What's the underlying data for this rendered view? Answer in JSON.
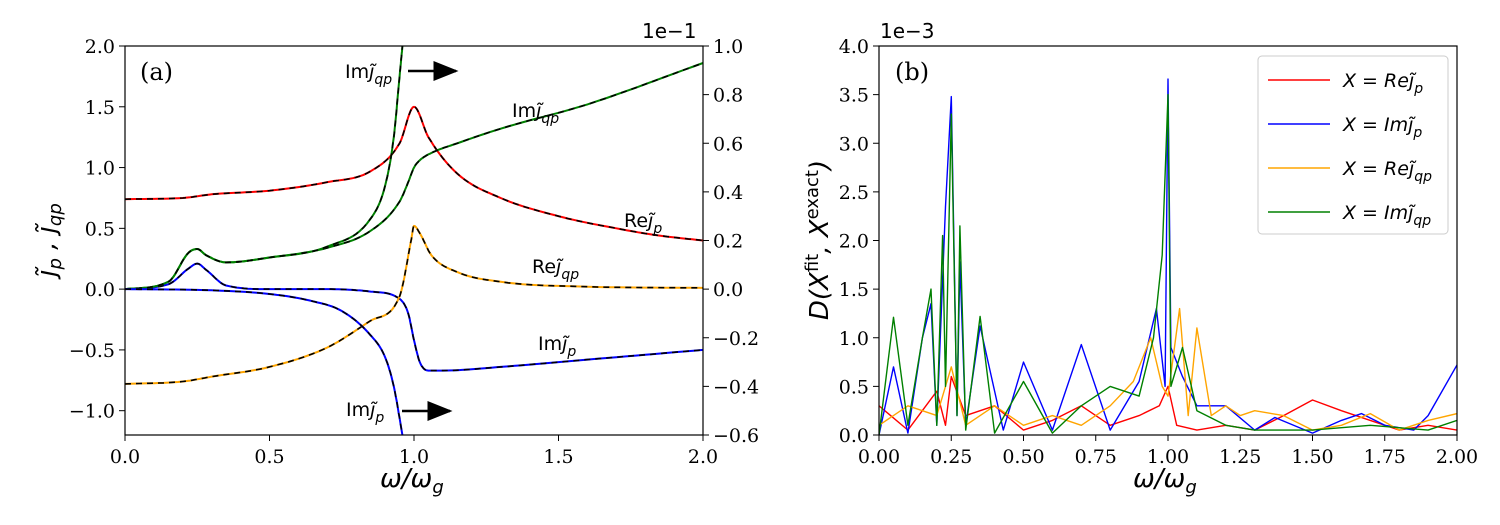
{
  "chart_data": [
    {
      "panel": "(a)",
      "type": "line",
      "xlabel": "ω/ω_g",
      "ylabel": "j̃_p , j̃_qp",
      "xlim": [
        0.0,
        2.0
      ],
      "ylim_left": [
        -1.2,
        2.0
      ],
      "ylim_right": [
        -0.6,
        1.0
      ],
      "right_axis_offset_text": "1e−1",
      "x_ticks": [
        "0.0",
        "0.5",
        "1.0",
        "1.5",
        "2.0"
      ],
      "y_ticks_left": [
        "−1.0",
        "−0.5",
        "0.0",
        "0.5",
        "1.0",
        "1.5",
        "2.0"
      ],
      "y_ticks_right": [
        "−0.6",
        "−0.4",
        "−0.2",
        "0.0",
        "0.2",
        "0.4",
        "0.6",
        "0.8",
        "1.0"
      ],
      "series": [
        {
          "name": "Re j̃_p",
          "color": "#ff0000",
          "axis": "left",
          "x": [
            0,
            0.2,
            0.3,
            0.5,
            0.7,
            0.85,
            0.95,
            1.0,
            1.05,
            1.15,
            1.3,
            1.5,
            1.7,
            1.85,
            2.0
          ],
          "y": [
            0.74,
            0.75,
            0.78,
            0.81,
            0.88,
            0.97,
            1.2,
            1.5,
            1.25,
            0.95,
            0.75,
            0.6,
            0.5,
            0.44,
            0.4
          ]
        },
        {
          "name": "Im j̃_p",
          "color": "#0000ff",
          "axis": "left",
          "x": [
            0,
            0.15,
            0.22,
            0.25,
            0.28,
            0.35,
            0.5,
            0.7,
            0.85,
            0.95,
            0.98,
            1.0,
            1.02,
            1.05,
            1.1,
            1.3,
            1.6,
            2.0
          ],
          "y": [
            0,
            0.04,
            0.17,
            0.21,
            0.16,
            0.03,
            0,
            0,
            -0.02,
            -0.08,
            -0.2,
            -0.42,
            -0.6,
            -0.67,
            -0.67,
            -0.64,
            -0.58,
            -0.5
          ]
        },
        {
          "name": "Re j̃_qp",
          "color": "#ffa500",
          "axis": "right",
          "x": [
            0,
            0.2,
            0.3,
            0.5,
            0.7,
            0.85,
            0.95,
            0.99,
            1.0,
            1.02,
            1.06,
            1.15,
            1.3,
            1.6,
            2.0
          ],
          "y": [
            -0.39,
            -0.38,
            -0.36,
            -0.32,
            -0.24,
            -0.13,
            -0.03,
            0.2,
            0.26,
            0.23,
            0.14,
            0.07,
            0.03,
            0.01,
            0.005
          ]
        },
        {
          "name": "Im j̃_qp",
          "color": "#008000",
          "axis": "right",
          "x": [
            0,
            0.15,
            0.22,
            0.25,
            0.28,
            0.35,
            0.5,
            0.7,
            0.85,
            0.95,
            0.98,
            1.0,
            1.02,
            1.06,
            1.15,
            1.3,
            1.6,
            2.0
          ],
          "y": [
            0,
            0.03,
            0.15,
            0.165,
            0.14,
            0.11,
            0.13,
            0.17,
            0.24,
            0.36,
            0.44,
            0.5,
            0.53,
            0.56,
            0.6,
            0.66,
            0.76,
            0.93
          ]
        },
        {
          "name": "Im j̃_qp (left axis)",
          "color": "#008000",
          "axis": "left",
          "x": [
            0,
            0.15,
            0.22,
            0.25,
            0.28,
            0.35,
            0.5,
            0.7,
            0.85,
            0.9,
            0.93,
            0.95,
            0.96
          ],
          "y": [
            0,
            0.06,
            0.3,
            0.33,
            0.28,
            0.22,
            0.26,
            0.35,
            0.58,
            0.85,
            1.25,
            1.75,
            2.0
          ]
        },
        {
          "name": "Im j̃_p (right axis)",
          "color": "#0000ff",
          "axis": "right",
          "x": [
            0,
            0.3,
            0.5,
            0.65,
            0.75,
            0.85,
            0.9,
            0.93,
            0.96
          ],
          "y": [
            0,
            -0.005,
            -0.02,
            -0.05,
            -0.09,
            -0.19,
            -0.28,
            -0.4,
            -0.6
          ]
        }
      ],
      "annotations": [
        "Im j̃_qp",
        "Re j̃_p",
        "Re j̃_qp",
        "Im j̃_p",
        "Im j̃_qp",
        "Im j̃_p"
      ]
    },
    {
      "panel": "(b)",
      "type": "line",
      "xlabel": "ω/ω_g",
      "ylabel": "D(X^fit, X^exact)",
      "xlim": [
        0.0,
        2.0
      ],
      "ylim": [
        0.0,
        4.0
      ],
      "offset_text": "1e−3",
      "x_ticks": [
        "0.00",
        "0.25",
        "0.50",
        "0.75",
        "1.00",
        "1.25",
        "1.50",
        "1.75",
        "2.00"
      ],
      "y_ticks": [
        "0.0",
        "0.5",
        "1.0",
        "1.5",
        "2.0",
        "2.5",
        "3.0",
        "3.5",
        "4.0"
      ],
      "legend_position": "top-right",
      "series": [
        {
          "name": "X = Re j̃_p",
          "color": "#ff0000",
          "x": [
            0,
            0.1,
            0.2,
            0.23,
            0.25,
            0.3,
            0.4,
            0.5,
            0.6,
            0.7,
            0.8,
            0.9,
            0.97,
            1.0,
            1.03,
            1.1,
            1.2,
            1.3,
            1.4,
            1.5,
            1.6,
            1.7,
            1.8,
            1.9,
            2.0
          ],
          "y": [
            0.3,
            0.05,
            0.45,
            0.1,
            0.6,
            0.2,
            0.3,
            0.05,
            0.15,
            0.3,
            0.1,
            0.2,
            0.3,
            0.5,
            0.1,
            0.05,
            0.1,
            0.05,
            0.2,
            0.36,
            0.25,
            0.15,
            0.05,
            0.1,
            0.05
          ]
        },
        {
          "name": "X = Im j̃_p",
          "color": "#0000ff",
          "x": [
            0,
            0.05,
            0.1,
            0.15,
            0.18,
            0.2,
            0.23,
            0.25,
            0.27,
            0.28,
            0.3,
            0.35,
            0.43,
            0.5,
            0.6,
            0.7,
            0.8,
            0.9,
            0.96,
            0.99,
            1.0,
            1.01,
            1.05,
            1.1,
            1.2,
            1.3,
            1.37,
            1.5,
            1.6,
            1.67,
            1.75,
            1.85,
            1.9,
            2.0
          ],
          "y": [
            0,
            0.7,
            0.02,
            1.0,
            1.35,
            0.1,
            2.35,
            3.48,
            0.2,
            1.78,
            0.1,
            1.12,
            0.05,
            0.75,
            0.05,
            0.93,
            0.05,
            0.55,
            1.3,
            0.5,
            3.66,
            0.9,
            0.6,
            0.3,
            0.3,
            0.05,
            0.18,
            0.02,
            0.15,
            0.22,
            0.1,
            0.05,
            0.2,
            0.72
          ]
        },
        {
          "name": "X = Re j̃_qp",
          "color": "#ffa500",
          "x": [
            0,
            0.1,
            0.2,
            0.25,
            0.3,
            0.4,
            0.5,
            0.6,
            0.7,
            0.8,
            0.88,
            0.94,
            0.98,
            1.0,
            1.04,
            1.07,
            1.1,
            1.15,
            1.2,
            1.25,
            1.3,
            1.4,
            1.5,
            1.6,
            1.7,
            1.8,
            1.9,
            2.0
          ],
          "y": [
            0.1,
            0.3,
            0.2,
            0.7,
            0.1,
            0.3,
            0.1,
            0.2,
            0.1,
            0.3,
            0.55,
            1.0,
            0.5,
            0.4,
            1.3,
            0.2,
            1.1,
            0.2,
            0.3,
            0.2,
            0.25,
            0.2,
            0.05,
            0.1,
            0.22,
            0.05,
            0.15,
            0.22
          ]
        },
        {
          "name": "X = Im j̃_qp",
          "color": "#008000",
          "x": [
            0,
            0.05,
            0.1,
            0.15,
            0.18,
            0.2,
            0.22,
            0.23,
            0.25,
            0.27,
            0.28,
            0.3,
            0.35,
            0.4,
            0.5,
            0.6,
            0.7,
            0.8,
            0.9,
            0.95,
            0.98,
            1.0,
            1.01,
            1.05,
            1.1,
            1.2,
            1.3,
            1.5,
            1.7,
            1.9,
            2.0
          ],
          "y": [
            0,
            1.21,
            0.1,
            1.0,
            1.5,
            0.1,
            2.05,
            0.5,
            3.3,
            0.2,
            2.15,
            0.05,
            1.22,
            0.02,
            0.55,
            0.02,
            0.3,
            0.5,
            0.4,
            1.0,
            1.85,
            3.5,
            0.5,
            0.9,
            0.25,
            0.1,
            0.05,
            0.05,
            0.1,
            0.05,
            0.15
          ]
        }
      ]
    }
  ],
  "panel_labels": {
    "a": "(a)",
    "b": "(b)"
  },
  "axis_text": {
    "a_xlabel": "ω/ω",
    "a_xlabel_sub": "g",
    "a_right_offset": "1e−1",
    "b_xlabel": "ω/ω",
    "b_xlabel_sub": "g",
    "b_offset": "1e−3"
  },
  "annotation_text": {
    "im_qp_arrow": "Im",
    "im_qp_curve": "Im",
    "re_p": "Re",
    "re_qp": "Re",
    "im_p_curve": "Im",
    "im_p_arrow": "Im",
    "sub_p": "p",
    "sub_qp": "qp"
  },
  "legend": [
    {
      "prefix": "X = Re",
      "sub": "p",
      "color": "#ff0000"
    },
    {
      "prefix": "X = Im",
      "sub": "p",
      "color": "#0000ff"
    },
    {
      "prefix": "X = Re",
      "sub": "qp",
      "color": "#ffa500"
    },
    {
      "prefix": "X = Im",
      "sub": "qp",
      "color": "#008000"
    }
  ]
}
